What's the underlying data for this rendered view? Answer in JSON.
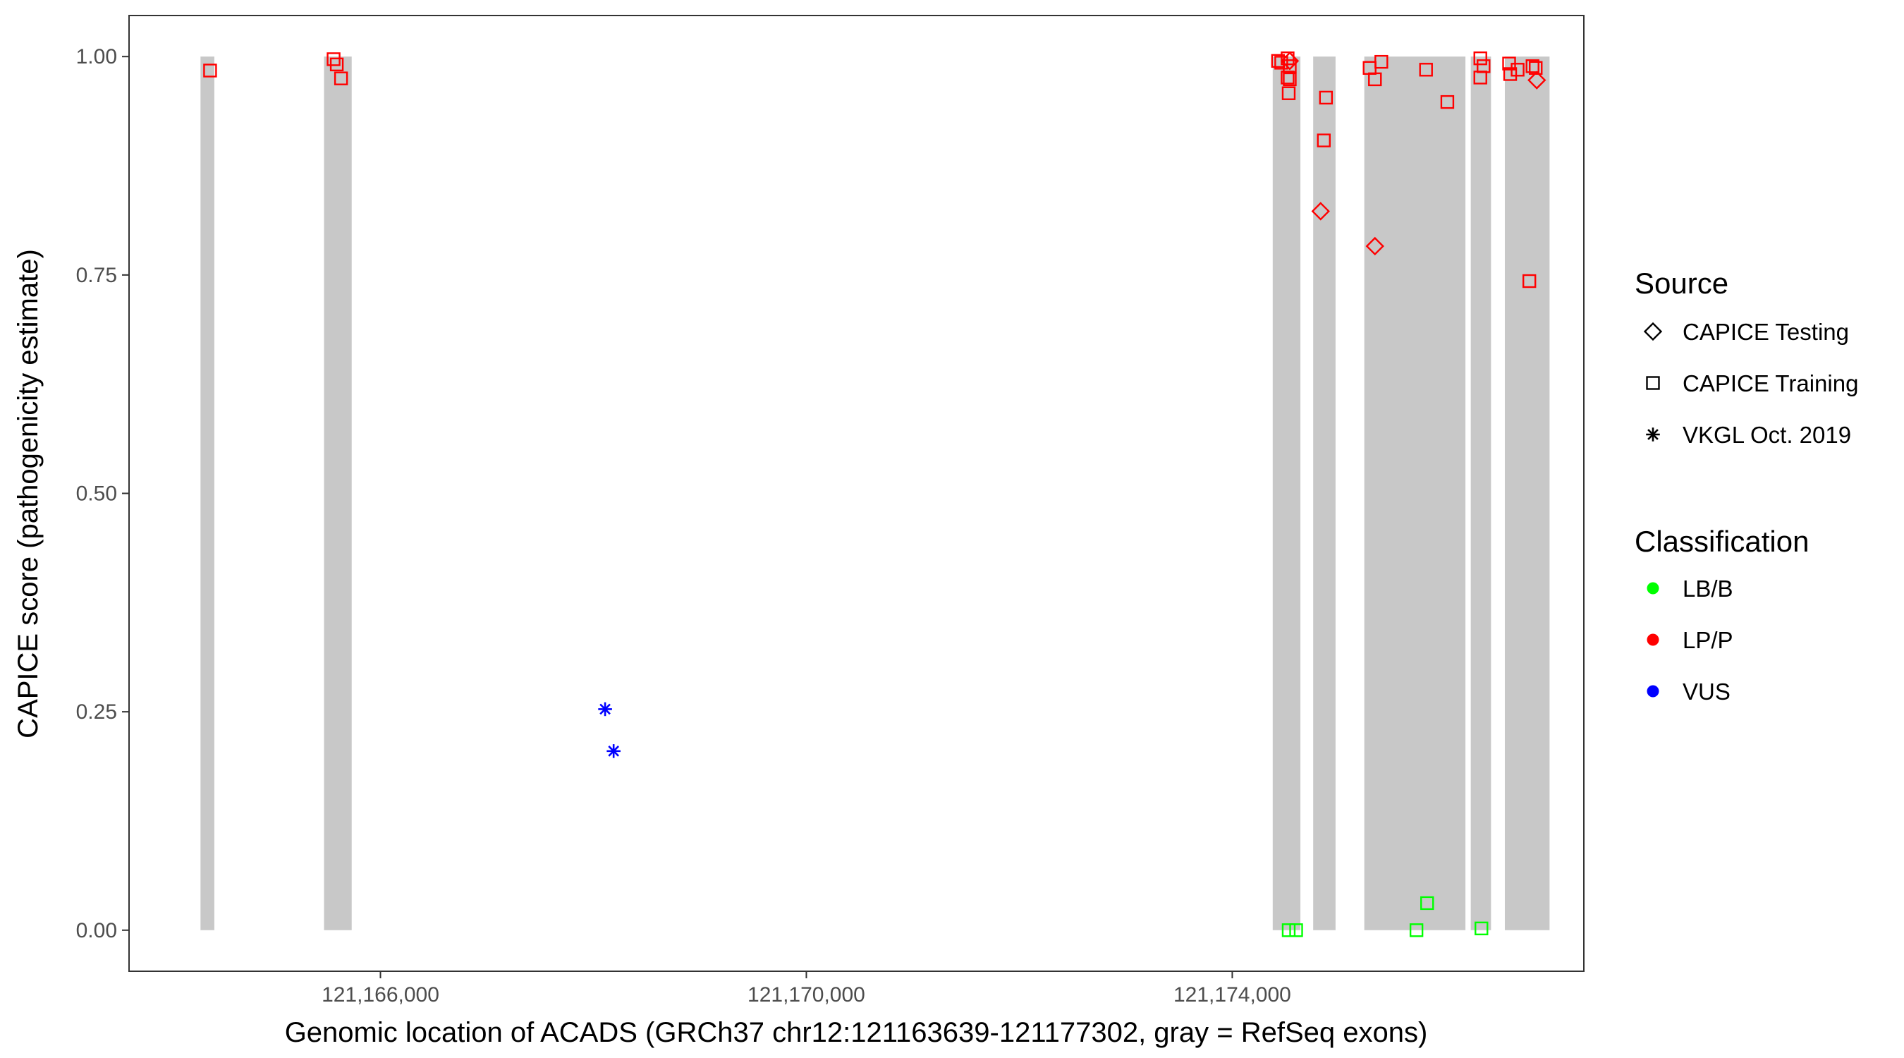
{
  "chart_data": {
    "type": "scatter",
    "xlabel": "Genomic location of ACADS (GRCh37 chr12:121163639-121177302, gray = RefSeq exons)",
    "ylabel": "CAPICE score (pathogenicity estimate)",
    "xlim": [
      121163639,
      121177302
    ],
    "ylim": [
      -0.047,
      1.047
    ],
    "x_ticks": [
      121166000,
      121170000,
      121174000
    ],
    "x_tick_labels": [
      "121,166,000",
      "121,170,000",
      "121,174,000"
    ],
    "y_ticks": [
      0,
      0.25,
      0.5,
      0.75,
      1.0
    ],
    "y_tick_labels": [
      "0.00",
      "0.25",
      "0.50",
      "0.75",
      "1.00"
    ],
    "grid": false,
    "exons": [
      {
        "start": 121164310,
        "end": 121164440
      },
      {
        "start": 121165470,
        "end": 121165730
      },
      {
        "start": 121174380,
        "end": 121174640
      },
      {
        "start": 121174760,
        "end": 121174970
      },
      {
        "start": 121175240,
        "end": 121176190
      },
      {
        "start": 121176240,
        "end": 121176430
      },
      {
        "start": 121176560,
        "end": 121176980
      }
    ],
    "legend": {
      "placement": "right",
      "source_title": "Source",
      "source_items": [
        {
          "label": "CAPICE Testing",
          "shape": "diamond"
        },
        {
          "label": "CAPICE Training",
          "shape": "square"
        },
        {
          "label": "VKGL Oct. 2019",
          "shape": "asterisk"
        }
      ],
      "classification_title": "Classification",
      "classification_items": [
        {
          "label": "LB/B",
          "color": "#00ff00"
        },
        {
          "label": "LP/P",
          "color": "#ff0000"
        },
        {
          "label": "VUS",
          "color": "#0000ff"
        }
      ]
    },
    "points": [
      {
        "x": 121164400,
        "y": 0.984,
        "source": "square",
        "cls": "LP/P"
      },
      {
        "x": 121165560,
        "y": 0.997,
        "source": "square",
        "cls": "LP/P"
      },
      {
        "x": 121165590,
        "y": 0.991,
        "source": "square",
        "cls": "LP/P"
      },
      {
        "x": 121165630,
        "y": 0.975,
        "source": "square",
        "cls": "LP/P"
      },
      {
        "x": 121174430,
        "y": 0.995,
        "source": "square",
        "cls": "LP/P"
      },
      {
        "x": 121174460,
        "y": 0.993,
        "source": "square",
        "cls": "LP/P"
      },
      {
        "x": 121174520,
        "y": 0.998,
        "source": "square",
        "cls": "LP/P"
      },
      {
        "x": 121174540,
        "y": 0.989,
        "source": "square",
        "cls": "LP/P"
      },
      {
        "x": 121174520,
        "y": 0.976,
        "source": "square",
        "cls": "LP/P"
      },
      {
        "x": 121174540,
        "y": 0.974,
        "source": "square",
        "cls": "LP/P"
      },
      {
        "x": 121174530,
        "y": 0.958,
        "source": "square",
        "cls": "LP/P"
      },
      {
        "x": 121174540,
        "y": 0.995,
        "source": "diamond",
        "cls": "LP/P"
      },
      {
        "x": 121174880,
        "y": 0.953,
        "source": "square",
        "cls": "LP/P"
      },
      {
        "x": 121174860,
        "y": 0.904,
        "source": "square",
        "cls": "LP/P"
      },
      {
        "x": 121174830,
        "y": 0.823,
        "source": "diamond",
        "cls": "LP/P"
      },
      {
        "x": 121175290,
        "y": 0.987,
        "source": "square",
        "cls": "LP/P"
      },
      {
        "x": 121175400,
        "y": 0.994,
        "source": "square",
        "cls": "LP/P"
      },
      {
        "x": 121175340,
        "y": 0.974,
        "source": "square",
        "cls": "LP/P"
      },
      {
        "x": 121175340,
        "y": 0.783,
        "source": "diamond",
        "cls": "LP/P"
      },
      {
        "x": 121175820,
        "y": 0.985,
        "source": "square",
        "cls": "LP/P"
      },
      {
        "x": 121176020,
        "y": 0.948,
        "source": "square",
        "cls": "LP/P"
      },
      {
        "x": 121176330,
        "y": 0.998,
        "source": "square",
        "cls": "LP/P"
      },
      {
        "x": 121176360,
        "y": 0.989,
        "source": "square",
        "cls": "LP/P"
      },
      {
        "x": 121176330,
        "y": 0.976,
        "source": "square",
        "cls": "LP/P"
      },
      {
        "x": 121176600,
        "y": 0.992,
        "source": "square",
        "cls": "LP/P"
      },
      {
        "x": 121176610,
        "y": 0.98,
        "source": "square",
        "cls": "LP/P"
      },
      {
        "x": 121176680,
        "y": 0.985,
        "source": "square",
        "cls": "LP/P"
      },
      {
        "x": 121176820,
        "y": 0.989,
        "source": "square",
        "cls": "LP/P"
      },
      {
        "x": 121176850,
        "y": 0.987,
        "source": "square",
        "cls": "LP/P"
      },
      {
        "x": 121176860,
        "y": 0.973,
        "source": "diamond",
        "cls": "LP/P"
      },
      {
        "x": 121176790,
        "y": 0.743,
        "source": "square",
        "cls": "LP/P"
      },
      {
        "x": 121174530,
        "y": 0.0,
        "source": "square",
        "cls": "LB/B"
      },
      {
        "x": 121174600,
        "y": 0.0,
        "source": "square",
        "cls": "LB/B"
      },
      {
        "x": 121175730,
        "y": 0.0,
        "source": "square",
        "cls": "LB/B"
      },
      {
        "x": 121175830,
        "y": 0.031,
        "source": "square",
        "cls": "LB/B"
      },
      {
        "x": 121176340,
        "y": 0.002,
        "source": "square",
        "cls": "LB/B"
      },
      {
        "x": 121168110,
        "y": 0.253,
        "source": "asterisk",
        "cls": "VUS"
      },
      {
        "x": 121168190,
        "y": 0.205,
        "source": "asterisk",
        "cls": "VUS"
      }
    ]
  },
  "colors": {
    "LB/B": "#00ff00",
    "LP/P": "#ff0000",
    "VUS": "#0000ff",
    "exon": "#c8c8c8"
  }
}
